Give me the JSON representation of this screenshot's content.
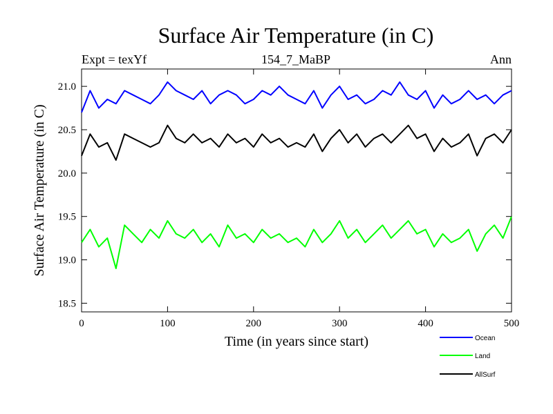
{
  "chart_data": {
    "type": "line",
    "title": "Surface Air Temperature (in C)",
    "header_left": "Expt = texYf",
    "header_center": "154_7_MaBP",
    "header_right": "Ann",
    "xlabel": "Time (in years since start)",
    "ylabel": "Surface Air Temperature (in C)",
    "xlim": [
      0,
      500
    ],
    "ylim": [
      18.4,
      21.2
    ],
    "xticks": [
      0,
      100,
      200,
      300,
      400,
      500
    ],
    "yticks": [
      18.5,
      19.0,
      19.5,
      20.0,
      20.5,
      21.0
    ],
    "x_tick_labels": [
      "0",
      "100",
      "200",
      "300",
      "400",
      "500"
    ],
    "y_tick_labels": [
      "18.5",
      "19.0",
      "19.5",
      "20.0",
      "20.5",
      "21.0"
    ],
    "grid": false,
    "legend_position": "bottom-right, below plot",
    "series": [
      {
        "name": "Ocean",
        "color": "#0000ff",
        "x": [
          0,
          10,
          20,
          30,
          40,
          50,
          60,
          70,
          80,
          90,
          100,
          110,
          120,
          130,
          140,
          150,
          160,
          170,
          180,
          190,
          200,
          210,
          220,
          230,
          240,
          250,
          260,
          270,
          280,
          290,
          300,
          310,
          320,
          330,
          340,
          350,
          360,
          370,
          380,
          390,
          400,
          410,
          420,
          430,
          440,
          450,
          460,
          470,
          480,
          490,
          500
        ],
        "values": [
          20.7,
          20.95,
          20.75,
          20.85,
          20.8,
          20.95,
          20.9,
          20.85,
          20.8,
          20.9,
          21.05,
          20.95,
          20.9,
          20.85,
          20.95,
          20.8,
          20.9,
          20.95,
          20.9,
          20.8,
          20.85,
          20.95,
          20.9,
          21.0,
          20.9,
          20.85,
          20.8,
          20.95,
          20.75,
          20.9,
          21.0,
          20.85,
          20.9,
          20.8,
          20.85,
          20.95,
          20.9,
          21.05,
          20.9,
          20.85,
          20.95,
          20.75,
          20.9,
          20.8,
          20.85,
          20.95,
          20.85,
          20.9,
          20.8,
          20.9,
          20.95
        ]
      },
      {
        "name": "Land",
        "color": "#00ff00",
        "x": [
          0,
          10,
          20,
          30,
          40,
          50,
          60,
          70,
          80,
          90,
          100,
          110,
          120,
          130,
          140,
          150,
          160,
          170,
          180,
          190,
          200,
          210,
          220,
          230,
          240,
          250,
          260,
          270,
          280,
          290,
          300,
          310,
          320,
          330,
          340,
          350,
          360,
          370,
          380,
          390,
          400,
          410,
          420,
          430,
          440,
          450,
          460,
          470,
          480,
          490,
          500
        ],
        "values": [
          19.2,
          19.35,
          19.15,
          19.25,
          18.9,
          19.4,
          19.3,
          19.2,
          19.35,
          19.25,
          19.45,
          19.3,
          19.25,
          19.35,
          19.2,
          19.3,
          19.15,
          19.4,
          19.25,
          19.3,
          19.2,
          19.35,
          19.25,
          19.3,
          19.2,
          19.25,
          19.15,
          19.35,
          19.2,
          19.3,
          19.45,
          19.25,
          19.35,
          19.2,
          19.3,
          19.4,
          19.25,
          19.35,
          19.45,
          19.3,
          19.35,
          19.15,
          19.3,
          19.2,
          19.25,
          19.35,
          19.1,
          19.3,
          19.4,
          19.25,
          19.5
        ]
      },
      {
        "name": "AllSurf",
        "color": "#000000",
        "x": [
          0,
          10,
          20,
          30,
          40,
          50,
          60,
          70,
          80,
          90,
          100,
          110,
          120,
          130,
          140,
          150,
          160,
          170,
          180,
          190,
          200,
          210,
          220,
          230,
          240,
          250,
          260,
          270,
          280,
          290,
          300,
          310,
          320,
          330,
          340,
          350,
          360,
          370,
          380,
          390,
          400,
          410,
          420,
          430,
          440,
          450,
          460,
          470,
          480,
          490,
          500
        ],
        "values": [
          20.2,
          20.45,
          20.3,
          20.35,
          20.15,
          20.45,
          20.4,
          20.35,
          20.3,
          20.35,
          20.55,
          20.4,
          20.35,
          20.45,
          20.35,
          20.4,
          20.3,
          20.45,
          20.35,
          20.4,
          20.3,
          20.45,
          20.35,
          20.4,
          20.3,
          20.35,
          20.3,
          20.45,
          20.25,
          20.4,
          20.5,
          20.35,
          20.45,
          20.3,
          20.4,
          20.45,
          20.35,
          20.45,
          20.55,
          20.4,
          20.45,
          20.25,
          20.4,
          20.3,
          20.35,
          20.45,
          20.2,
          20.4,
          20.45,
          20.35,
          20.5
        ]
      }
    ]
  }
}
